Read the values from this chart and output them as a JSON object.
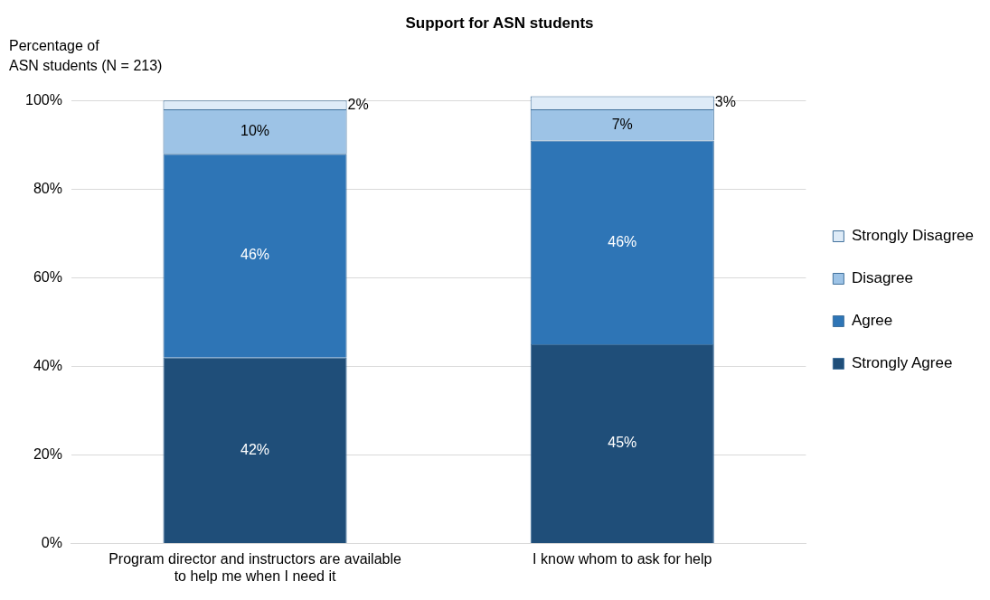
{
  "chart_data": {
    "type": "bar",
    "title": "Support for ASN students",
    "ylabel": "Percentage of ASN students (N = 213)",
    "stacked": true,
    "legend": "right",
    "grid": "y",
    "categories": [
      "Program director and instructors are available to help me when I need it",
      "I know whom to ask for help"
    ],
    "series": [
      {
        "name": "Strongly Agree",
        "color": "#1f4e79",
        "values": [
          42,
          45
        ],
        "value_labels": [
          "42%",
          "45%"
        ]
      },
      {
        "name": "Agree",
        "color": "#2e75b6",
        "values": [
          46,
          46
        ],
        "value_labels": [
          "46%",
          "46%"
        ]
      },
      {
        "name": "Disagree",
        "color": "#9dc3e6",
        "values": [
          10,
          7
        ],
        "value_labels": [
          "10%",
          "7%"
        ]
      },
      {
        "name": "Strongly Disagree",
        "color": "#deebf7",
        "values": [
          2,
          3
        ],
        "value_labels": [
          "2%",
          "3%"
        ]
      }
    ],
    "ylim": [
      0,
      101
    ],
    "yticks": [
      {
        "value": 0,
        "label": "0%"
      },
      {
        "value": 20,
        "label": "20%"
      },
      {
        "value": 40,
        "label": "40%"
      },
      {
        "value": 60,
        "label": "60%"
      },
      {
        "value": 80,
        "label": "80%"
      },
      {
        "value": 100,
        "label": "100%"
      }
    ]
  }
}
